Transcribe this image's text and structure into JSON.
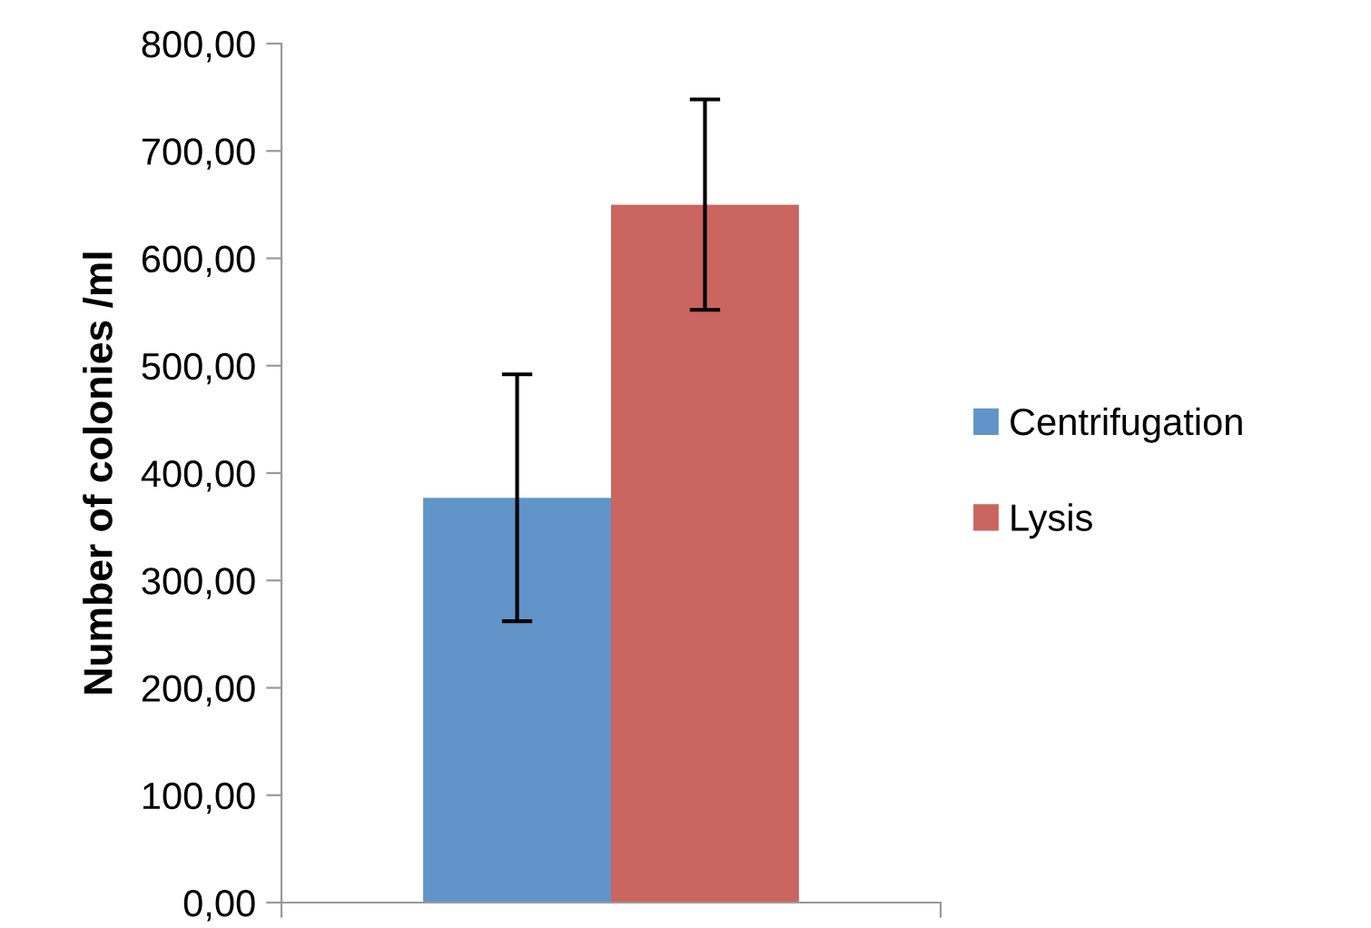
{
  "chart_data": {
    "type": "bar",
    "ylabel": "Number of colonies /ml",
    "categories": [
      null
    ],
    "series": [
      {
        "name": "Centrifugation",
        "color": "#6194c8",
        "values": [
          377
        ],
        "errors": [
          115
        ]
      },
      {
        "name": "Lysis",
        "color": "#cb655f",
        "values": [
          650
        ],
        "errors": [
          98
        ]
      }
    ],
    "ylim": [
      0,
      800
    ],
    "yticks": [
      {
        "value": 0,
        "label": "0,00"
      },
      {
        "value": 100,
        "label": "100,00"
      },
      {
        "value": 200,
        "label": "200,00"
      },
      {
        "value": 300,
        "label": "300,00"
      },
      {
        "value": 400,
        "label": "400,00"
      },
      {
        "value": 500,
        "label": "500,00"
      },
      {
        "value": 600,
        "label": "600,00"
      },
      {
        "value": 700,
        "label": "700,00"
      },
      {
        "value": 800,
        "label": "800,00"
      }
    ],
    "grid": false,
    "legend": "right"
  }
}
